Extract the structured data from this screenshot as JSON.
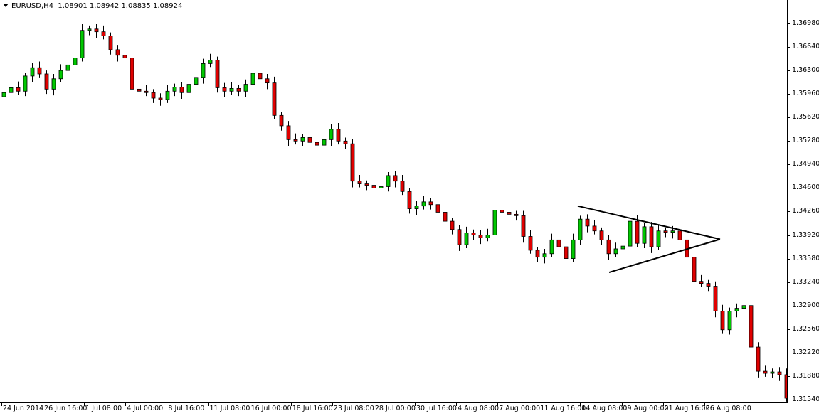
{
  "header": {
    "symbol": "EURUSD,H4",
    "ohlc_text": "1.08901 1.08942 1.08835 1.08924"
  },
  "colors": {
    "background": "#ffffff",
    "bull": "#00c800",
    "bear": "#e00000",
    "outline": "#000000"
  },
  "chart_data": {
    "type": "candlestick",
    "symbol": "EURUSD",
    "timeframe": "H4",
    "ylim": [
      1.3154,
      1.3705
    ],
    "y_ticks": [
      "1.36980",
      "1.36640",
      "1.36300",
      "1.35960",
      "1.35620",
      "1.35280",
      "1.34940",
      "1.34600",
      "1.34260",
      "1.33920",
      "1.33580",
      "1.33240",
      "1.32900",
      "1.32560",
      "1.32220",
      "1.31880",
      "1.31540"
    ],
    "x_ticks": [
      "24 Jun 2014",
      "26 Jun 16:00",
      "1 Jul 08:00",
      "4 Jul 00:00",
      "8 Jul 16:00",
      "11 Jul 08:00",
      "16 Jul 00:00",
      "18 Jul 16:00",
      "23 Jul 08:00",
      "28 Jul 00:00",
      "30 Jul 16:00",
      "4 Aug 08:00",
      "7 Aug 00:00",
      "11 Aug 16:00",
      "14 Aug 08:00",
      "19 Aug 00:00",
      "21 Aug 16:00",
      "26 Aug 08:00"
    ],
    "first_open": 1.3592,
    "closes": [
      1.3598,
      1.3605,
      1.36,
      1.3622,
      1.3634,
      1.3625,
      1.3603,
      1.3618,
      1.363,
      1.3638,
      1.3648,
      1.3688,
      1.369,
      1.3686,
      1.368,
      1.366,
      1.3652,
      1.3648,
      1.3603,
      1.36,
      1.3598,
      1.359,
      1.3588,
      1.36,
      1.3606,
      1.3598,
      1.361,
      1.362,
      1.364,
      1.3645,
      1.3605,
      1.36,
      1.3604,
      1.36,
      1.361,
      1.3626,
      1.3618,
      1.3612,
      1.3565,
      1.355,
      1.353,
      1.3528,
      1.3533,
      1.3526,
      1.3522,
      1.353,
      1.3545,
      1.3528,
      1.3524,
      1.347,
      1.3466,
      1.3464,
      1.346,
      1.3462,
      1.3478,
      1.347,
      1.3455,
      1.343,
      1.3434,
      1.344,
      1.3436,
      1.3425,
      1.3412,
      1.34,
      1.3378,
      1.3395,
      1.3392,
      1.3388,
      1.3392,
      1.3428,
      1.3425,
      1.3422,
      1.342,
      1.339,
      1.337,
      1.336,
      1.3365,
      1.3385,
      1.3375,
      1.3358,
      1.3385,
      1.3415,
      1.3405,
      1.3398,
      1.3385,
      1.3365,
      1.3372,
      1.3376,
      1.3412,
      1.338,
      1.3404,
      1.3375,
      1.3398,
      1.3396,
      1.3398,
      1.3385,
      1.336,
      1.3325,
      1.3322,
      1.3318,
      1.3282,
      1.3255,
      1.3282,
      1.3286,
      1.329,
      1.323,
      1.3195,
      1.3192,
      1.3194,
      1.319,
      1.3156
    ],
    "annotations": [
      {
        "type": "triangle",
        "upper_line": {
          "from_bar": 80.7,
          "from_price": 1.3434,
          "to_bar": 100.7,
          "to_price": 1.3386
        },
        "lower_line": {
          "from_bar": 85.1,
          "from_price": 1.3338,
          "to_bar": 100.7,
          "to_price": 1.3386
        }
      }
    ],
    "grid": false
  }
}
